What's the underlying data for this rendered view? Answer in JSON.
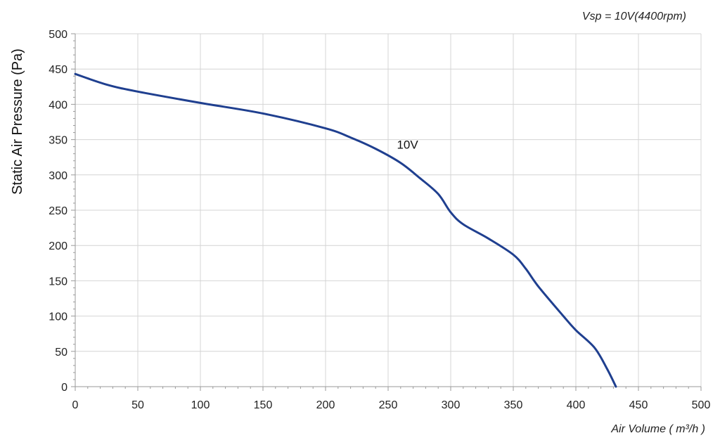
{
  "chart_data": {
    "type": "line",
    "title": "",
    "annotation": "Vsp = 10V(4400rpm)",
    "xlabel": "Air Volume ( m³/h )",
    "ylabel": "Static Air Pressure  (Pa)",
    "xlim": [
      0,
      500
    ],
    "ylim": [
      0,
      500
    ],
    "x_ticks": [
      0,
      50,
      100,
      150,
      200,
      250,
      300,
      350,
      400,
      450,
      500
    ],
    "y_ticks": [
      0,
      50,
      100,
      150,
      200,
      250,
      300,
      350,
      400,
      450,
      500
    ],
    "grid": true,
    "series": [
      {
        "name": "10V",
        "color": "#1f3f8f",
        "x": [
          0,
          25,
          50,
          100,
          150,
          200,
          220,
          240,
          260,
          275,
          290,
          300,
          310,
          330,
          350,
          360,
          370,
          390,
          400,
          415,
          425,
          432
        ],
        "y": [
          443,
          428,
          418,
          402,
          387,
          366,
          353,
          337,
          317,
          296,
          273,
          247,
          230,
          210,
          187,
          167,
          142,
          100,
          80,
          55,
          25,
          0
        ]
      }
    ]
  }
}
